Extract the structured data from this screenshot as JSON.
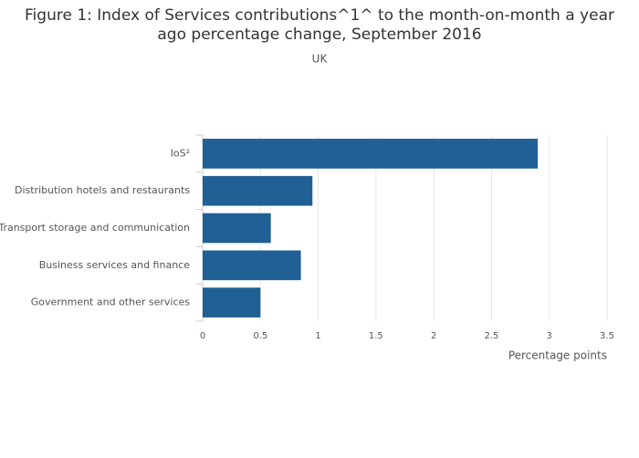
{
  "chart_data": {
    "type": "barh",
    "title": "Figure 1: Index of Services contributions^1^ to the month-on-month a year ago percentage change, September 2016",
    "subtitle": "UK",
    "x_label": "Percentage points",
    "categories": [
      "IoS²",
      "Distribution hotels and restaurants",
      "Transport storage and communication",
      "Business services and finance",
      "Government and other services"
    ],
    "values": [
      2.9,
      0.95,
      0.59,
      0.85,
      0.5
    ],
    "color": "#206095",
    "xlim": [
      0,
      3.5
    ],
    "xticks": [
      0,
      0.5,
      1,
      1.5,
      2,
      2.5,
      3,
      3.5
    ],
    "grid": true
  }
}
